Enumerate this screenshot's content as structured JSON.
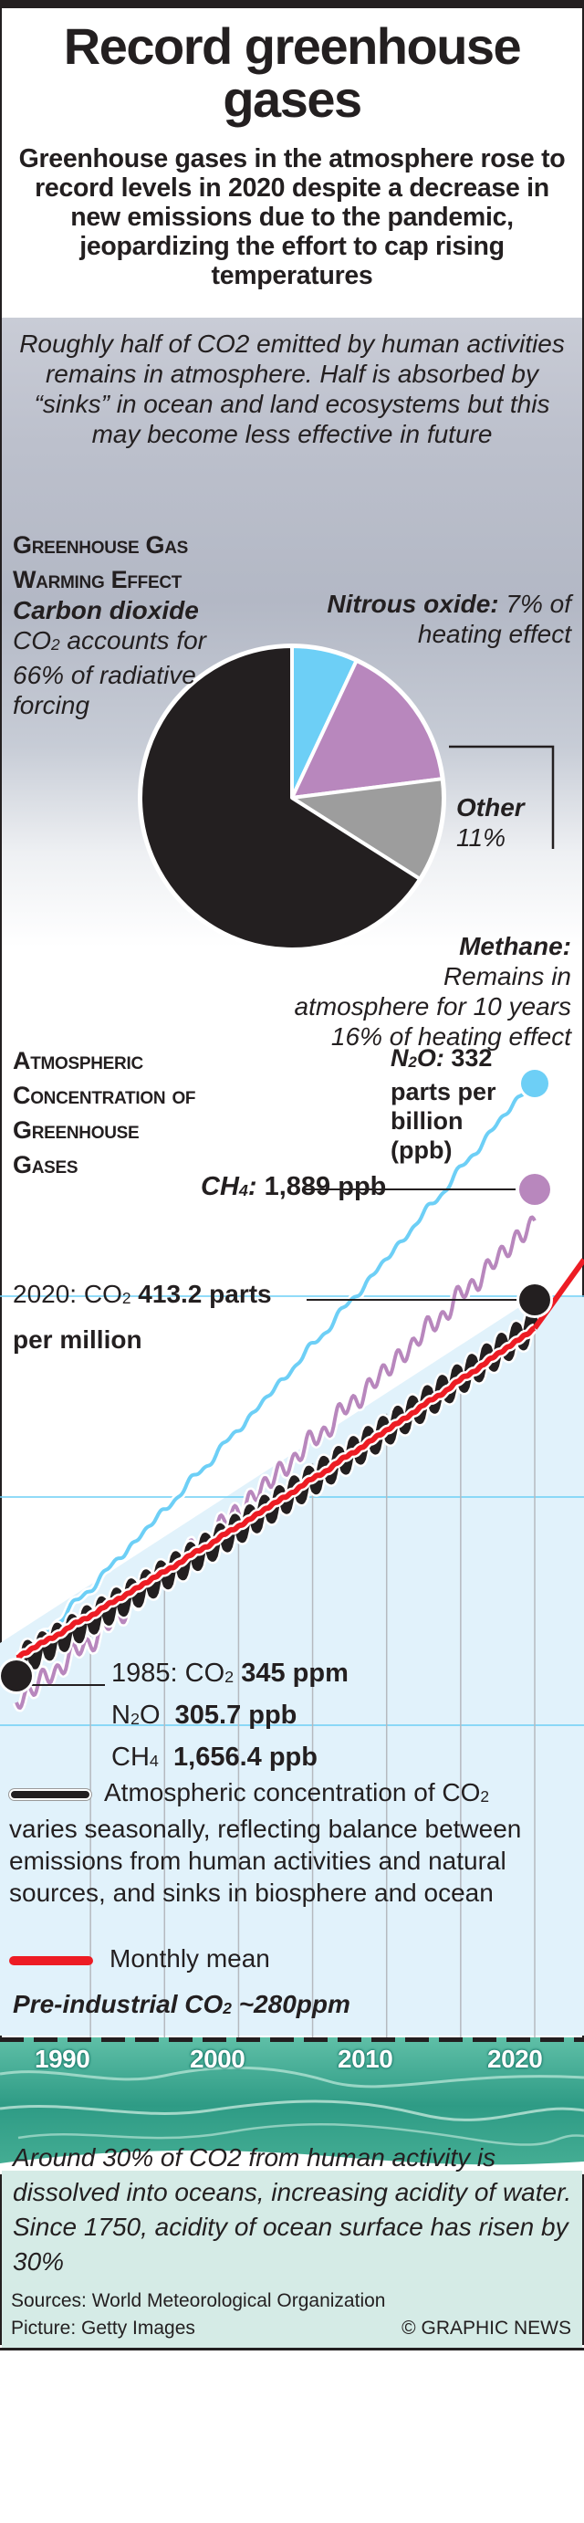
{
  "title": "Record greenhouse gases",
  "subtitle": "Greenhouse gases in the atmosphere rose to record levels in 2020 despite a decrease in new emissions due to the pandemic, jeopardizing the effort to cap rising temperatures",
  "sky_note": "Roughly half of CO2 emitted by human activities remains in atmosphere. Half is absorbed by “sinks” in ocean and land ecosystems but this may become less effective in future",
  "pie_section": {
    "heading_line1": "Greenhouse Gas",
    "heading_line2": "Warming Effect",
    "co2_name": "Carbon dioxide",
    "co2_desc_pre": "CO",
    "co2_desc_sub": "2",
    "co2_desc_post": " accounts for 66% of radiative forcing",
    "n2o_name": "Nitrous oxide:",
    "n2o_desc": "7% of heating effect",
    "other_name": "Other",
    "other_desc": "11%",
    "ch4_name": "Methane:",
    "ch4_desc_line1": "Remains in",
    "ch4_desc_line2": "atmosphere for 10 years",
    "ch4_desc_line3": "16% of heating effect"
  },
  "concentration_section": {
    "heading_line1": "Atmospheric",
    "heading_line2": "Concentration of",
    "heading_line3": "Greenhouse",
    "heading_line4": "Gases",
    "n2o_now_pre": "N",
    "n2o_now_sub": "2",
    "n2o_now_mid": "O:",
    "n2o_now_value": " 332",
    "n2o_now_unit_line1": "parts per",
    "n2o_now_unit_line2": "billion",
    "n2o_now_unit_line3": "(ppb)",
    "ch4_now_pre": "CH",
    "ch4_now_sub": "4",
    "ch4_now_mid": ":",
    "ch4_now_value": " 1,889 ppb",
    "co2_now_year": "2020: CO",
    "co2_now_sub": "2",
    "co2_now_value": " 413.2 parts",
    "co2_now_value2": "per million",
    "y1985_line1_pre": "1985: CO",
    "y1985_line1_sub": "2",
    "y1985_line1_value": " 345 ppm",
    "y1985_line2_pre": "N",
    "y1985_line2_sub": "2",
    "y1985_line2_mid": "O",
    "y1985_line2_value": "  305.7 ppb",
    "y1985_line3_pre": "CH",
    "y1985_line3_sub": "4",
    "y1985_line3_value": "  1,656.4 ppb",
    "legend_seasonal_pre": "Atmospheric concentration of CO",
    "legend_seasonal_sub": "2",
    "legend_seasonal_post": "varies seasonally, reflecting balance between emissions from human activities and natural sources, and sinks in biosphere and ocean",
    "legend_mean": "Monthly mean",
    "preindustrial_pre": "Pre-industrial CO",
    "preindustrial_sub": "2",
    "preindustrial_post": " ~280ppm"
  },
  "ocean_note": "Around 30% of CO2 from human activity is dissolved into oceans, increasing acidity of water. Since 1750, acidity of ocean surface has risen by 30%",
  "footer": {
    "sources": "Sources: World Meteorological Organization",
    "picture": "Picture: Getty Images",
    "credit": "© GRAPHIC NEWS"
  },
  "colors": {
    "co2": "#231f20",
    "n2o": "#6dcff6",
    "ch4": "#b887bd",
    "other": "#9d9d9d",
    "monthly_mean": "#ed1c24",
    "chart_fill": "#e1f2fb",
    "ocean": "#2a9f8a"
  },
  "chart_data": [
    {
      "type": "pie",
      "title": "Greenhouse Gas Warming Effect",
      "unit": "% of radiative forcing",
      "slices": [
        {
          "name": "Nitrous oxide",
          "value": 7,
          "color": "#6dcff6"
        },
        {
          "name": "Methane",
          "value": 16,
          "color": "#b887bd"
        },
        {
          "name": "Other",
          "value": 11,
          "color": "#9d9d9d"
        },
        {
          "name": "Carbon dioxide",
          "value": 66,
          "color": "#231f20"
        }
      ]
    },
    {
      "type": "line",
      "title": "Atmospheric Concentration of Greenhouse Gases",
      "xlabel": "",
      "ylabel": "",
      "x_ticks": [
        1990,
        2000,
        2010,
        2020
      ],
      "xlim": [
        1985,
        2021
      ],
      "grid": true,
      "series": [
        {
          "name": "CO2 (ppm)",
          "style": "seasonal",
          "start": {
            "x": 1985,
            "y": 345
          },
          "end": {
            "x": 2020,
            "y": 413.2
          },
          "seasonal_amplitude_ppm": 6
        },
        {
          "name": "CO2 monthly mean (ppm)",
          "style": "mean",
          "start": {
            "x": 1985,
            "y": 345
          },
          "end": {
            "x": 2020,
            "y": 413.2
          }
        },
        {
          "name": "N2O (ppb)",
          "start": {
            "x": 1985,
            "y": 305.7
          },
          "end": {
            "x": 2020,
            "y": 332
          }
        },
        {
          "name": "CH4 (ppb)",
          "start": {
            "x": 1985,
            "y": 1656.4
          },
          "end": {
            "x": 2020,
            "y": 1889
          }
        }
      ],
      "annotations": [
        "Pre-industrial CO2 ~280ppm"
      ]
    }
  ]
}
